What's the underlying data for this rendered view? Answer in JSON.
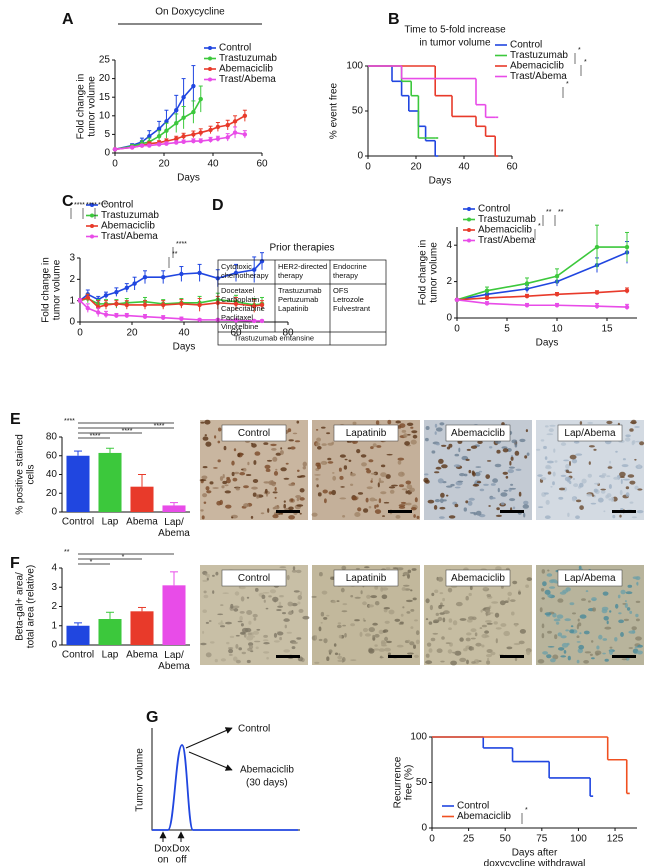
{
  "chart_data": [
    {
      "type": "line",
      "panel": "A",
      "title": "On Doxycycline",
      "xlabel": "Days",
      "ylabel": [
        "Fold change in",
        "tumor volume"
      ],
      "xlim": [
        0,
        60
      ],
      "xticks": [
        0,
        20,
        40,
        60
      ],
      "ylim": [
        0,
        25
      ],
      "yticks": [
        0,
        5,
        10,
        15,
        20,
        25
      ],
      "legend": "top-right",
      "series": [
        {
          "name": "Control",
          "color": "#2046e0",
          "x": [
            0,
            7,
            11,
            14,
            18,
            21,
            25,
            28,
            32
          ],
          "values": [
            1,
            2,
            3,
            4.5,
            6.5,
            8.5,
            11.5,
            15,
            18
          ],
          "errors": [
            0.2,
            0.5,
            1,
            1.5,
            2,
            3,
            4,
            5,
            5.5
          ]
        },
        {
          "name": "Trastuzumab",
          "color": "#3cc83c",
          "x": [
            0,
            7,
            11,
            14,
            18,
            21,
            25,
            28,
            32,
            35
          ],
          "values": [
            1,
            1.8,
            2.5,
            3,
            4.5,
            6,
            8,
            9.5,
            11,
            14.5
          ],
          "errors": [
            0.2,
            0.5,
            0.8,
            1,
            1.5,
            2,
            2.5,
            3,
            3,
            3.5
          ]
        },
        {
          "name": "Abemaciclib",
          "color": "#e83a2a",
          "x": [
            0,
            7,
            11,
            14,
            18,
            21,
            25,
            28,
            32,
            35,
            39,
            42,
            46,
            49,
            53
          ],
          "values": [
            1,
            1.5,
            2,
            2.5,
            2.8,
            3.2,
            3.8,
            4.5,
            5,
            5.5,
            6.2,
            7,
            7.5,
            8.5,
            10
          ],
          "errors": [
            0.2,
            0.3,
            0.4,
            0.5,
            0.5,
            0.6,
            0.7,
            0.8,
            0.9,
            1,
            1,
            1.2,
            1.3,
            1.5,
            1.5
          ]
        },
        {
          "name": "Trast/Abema",
          "color": "#e84ce8",
          "x": [
            0,
            7,
            11,
            14,
            18,
            21,
            25,
            28,
            32,
            35,
            39,
            42,
            46,
            49,
            53
          ],
          "values": [
            1,
            1.5,
            2,
            2,
            2.3,
            2.5,
            2.8,
            3,
            3.2,
            3.2,
            3.5,
            3.8,
            4.2,
            5.5,
            5
          ],
          "errors": [
            0.2,
            0.3,
            0.3,
            0.4,
            0.4,
            0.5,
            0.5,
            0.5,
            0.6,
            0.6,
            0.7,
            0.7,
            1,
            1.5,
            1
          ]
        }
      ]
    },
    {
      "type": "step",
      "panel": "B",
      "title": [
        "Time to 5-fold increase",
        "in tumor volume"
      ],
      "xlabel": "Days",
      "ylabel": "% event free",
      "xlim": [
        0,
        60
      ],
      "xticks": [
        0,
        20,
        40,
        60
      ],
      "ylim": [
        0,
        100
      ],
      "yticks": [
        0,
        50,
        100
      ],
      "legend": "right",
      "annotations": [
        "*",
        "*",
        "*"
      ],
      "series": [
        {
          "name": "Control",
          "color": "#2046e0",
          "x": [
            0,
            10,
            14,
            17,
            21,
            24,
            28
          ],
          "values": [
            100,
            83,
            67,
            50,
            33,
            17,
            0
          ]
        },
        {
          "name": "Trastuzumab",
          "color": "#3cc83c",
          "x": [
            0,
            14,
            18,
            21,
            28
          ],
          "values": [
            100,
            83,
            67,
            20,
            20
          ]
        },
        {
          "name": "Abemaciclib",
          "color": "#e83a2a",
          "x": [
            0,
            28,
            35,
            45,
            49,
            53
          ],
          "values": [
            100,
            67,
            44,
            33,
            22,
            0
          ]
        },
        {
          "name": "Trast/Abema",
          "color": "#e84ce8",
          "x": [
            0,
            14,
            45,
            49,
            53
          ],
          "values": [
            100,
            86,
            57,
            43,
            43
          ]
        }
      ]
    },
    {
      "type": "line",
      "panel": "C",
      "xlabel": "Days",
      "ylabel": [
        "Fold change in",
        "tumor volume"
      ],
      "xlim": [
        0,
        80
      ],
      "xticks": [
        0,
        20,
        40,
        60,
        80
      ],
      "ylim": [
        0,
        3
      ],
      "yticks": [
        0,
        1,
        2,
        3
      ],
      "legend": "top-left",
      "annotations": [
        "****",
        "****",
        "****",
        "****",
        "**"
      ],
      "series": [
        {
          "name": "Control",
          "color": "#2046e0",
          "x": [
            0,
            3,
            7,
            10,
            14,
            18,
            21,
            25,
            32,
            39,
            46,
            53,
            60,
            67,
            70
          ],
          "values": [
            1,
            1.3,
            1.05,
            1.25,
            1.4,
            1.6,
            1.8,
            2.1,
            2.1,
            2.25,
            2.3,
            2.05,
            2.3,
            2.45,
            2.85
          ],
          "errors": [
            0.1,
            0.2,
            0.15,
            0.15,
            0.2,
            0.2,
            0.3,
            0.3,
            0.3,
            0.35,
            0.4,
            0.4,
            0.4,
            0.6,
            0.4
          ]
        },
        {
          "name": "Trastuzumab",
          "color": "#3cc83c",
          "x": [
            0,
            3,
            7,
            10,
            14,
            18,
            25,
            32,
            39,
            46,
            53,
            60,
            67,
            70
          ],
          "values": [
            1,
            1.1,
            0.85,
            0.85,
            0.85,
            0.9,
            0.95,
            0.85,
            0.9,
            0.9,
            1.05,
            0.95,
            0.8,
            0.85
          ],
          "errors": [
            0.1,
            0.2,
            0.2,
            0.2,
            0.2,
            0.2,
            0.2,
            0.2,
            0.2,
            0.3,
            0.3,
            0.3,
            0.3,
            0.3
          ]
        },
        {
          "name": "Abemaciclib",
          "color": "#e83a2a",
          "x": [
            0,
            3,
            7,
            10,
            14,
            18,
            25,
            32,
            39,
            46,
            53,
            60,
            67,
            70
          ],
          "values": [
            1,
            1.15,
            0.7,
            0.8,
            0.85,
            0.8,
            0.8,
            0.8,
            0.85,
            0.8,
            0.9,
            0.85,
            0.75,
            0.8
          ],
          "errors": [
            0.1,
            0.15,
            0.3,
            0.2,
            0.15,
            0.2,
            0.2,
            0.2,
            0.2,
            0.3,
            0.3,
            0.3,
            0.3,
            0.2
          ]
        },
        {
          "name": "Trast/Abema",
          "color": "#e84ce8",
          "x": [
            0,
            3,
            7,
            10,
            14,
            18,
            25,
            32,
            39,
            46,
            53,
            60,
            67,
            70
          ],
          "values": [
            1,
            0.65,
            0.45,
            0.35,
            0.3,
            0.3,
            0.25,
            0.2,
            0.15,
            0.1,
            0.1,
            0.08,
            0.05,
            0.05
          ],
          "errors": [
            0.1,
            0.2,
            0.2,
            0.15,
            0.1,
            0.1,
            0.1,
            0.1,
            0.08,
            0.05,
            0.05,
            0.05,
            0.05,
            0.05
          ]
        }
      ]
    },
    {
      "type": "line",
      "xlabel": "Days",
      "ylabel": [
        "Fold change in",
        "tumor volume"
      ],
      "xlim": [
        0,
        18
      ],
      "xticks": [
        0,
        5,
        10,
        15
      ],
      "ylim": [
        0,
        5
      ],
      "yticks": [
        0,
        2,
        4
      ],
      "legend": "top-left",
      "annotations": [
        "**",
        "**",
        "*"
      ],
      "series": [
        {
          "name": "Control",
          "color": "#2046e0",
          "x": [
            0,
            3,
            7,
            10,
            14,
            17
          ],
          "values": [
            1,
            1.3,
            1.6,
            2,
            2.9,
            3.6
          ],
          "errors": [
            0.05,
            0.15,
            0.2,
            0.25,
            0.4,
            0.6
          ]
        },
        {
          "name": "Trastuzumab",
          "color": "#3cc83c",
          "x": [
            0,
            3,
            7,
            10,
            14,
            17
          ],
          "values": [
            1,
            1.5,
            1.9,
            2.3,
            3.9,
            3.9
          ],
          "errors": [
            0.05,
            0.2,
            0.3,
            0.4,
            1.2,
            0.8
          ]
        },
        {
          "name": "Abemaciclib",
          "color": "#e83a2a",
          "x": [
            0,
            3,
            7,
            10,
            14,
            17
          ],
          "values": [
            1,
            1.1,
            1.2,
            1.3,
            1.4,
            1.5
          ],
          "errors": [
            0.05,
            0.1,
            0.1,
            0.1,
            0.1,
            0.15
          ]
        },
        {
          "name": "Trast/Abema",
          "color": "#e84ce8",
          "x": [
            0,
            3,
            7,
            10,
            14,
            17
          ],
          "values": [
            1,
            0.8,
            0.7,
            0.7,
            0.65,
            0.6
          ],
          "errors": [
            0.05,
            0.1,
            0.1,
            0.1,
            0.15,
            0.15
          ]
        }
      ]
    },
    {
      "type": "bar",
      "panel": "E",
      "ylabel": [
        "% positive stained",
        "cells"
      ],
      "categories": [
        "Control",
        "Lap",
        "Abema",
        "Lap/Abema"
      ],
      "values": [
        60,
        63,
        27,
        7
      ],
      "errors": [
        5,
        5,
        13,
        3
      ],
      "colors": [
        "#2046e0",
        "#3cc83c",
        "#e83a2a",
        "#e84ce8"
      ],
      "ylim": [
        0,
        80
      ],
      "yticks": [
        0,
        20,
        40,
        60,
        80
      ],
      "annotations": [
        "****",
        "****",
        "****",
        "****"
      ]
    },
    {
      "type": "bar",
      "panel": "F",
      "ylabel": [
        "Beta-gal+ area/",
        "total area (relative)"
      ],
      "categories": [
        "Control",
        "Lap",
        "Abema",
        "Lap/Abema"
      ],
      "values": [
        1.0,
        1.35,
        1.75,
        3.1
      ],
      "errors": [
        0.15,
        0.35,
        0.2,
        0.7
      ],
      "colors": [
        "#2046e0",
        "#3cc83c",
        "#e83a2a",
        "#e84ce8"
      ],
      "ylim": [
        0,
        4
      ],
      "yticks": [
        0,
        1,
        2,
        3,
        4
      ],
      "annotations": [
        "**",
        "*",
        "*"
      ]
    },
    {
      "type": "step",
      "xlabel": [
        "Days after",
        "doxycycline withdrawal"
      ],
      "ylabel": [
        "Recurrence",
        "free (%)"
      ],
      "xlim": [
        0,
        140
      ],
      "xticks": [
        0,
        25,
        50,
        75,
        100,
        125
      ],
      "ylim": [
        0,
        100
      ],
      "yticks": [
        0,
        50,
        100
      ],
      "legend": "bottom-left",
      "annotations": [
        "*"
      ],
      "series": [
        {
          "name": "Control",
          "color": "#2046e0",
          "x": [
            0,
            35,
            55,
            80,
            108
          ],
          "values": [
            100,
            88,
            73,
            55,
            35
          ]
        },
        {
          "name": "Abemaciclib",
          "color": "#f05020",
          "x": [
            0,
            120,
            133
          ],
          "values": [
            100,
            75,
            38
          ]
        }
      ]
    }
  ],
  "prior_therapies": {
    "panel": "D",
    "title": "Prior therapies",
    "columns": [
      {
        "header": "Cytotoxic chemotherapy",
        "items": [
          "Docetaxel",
          "Carboplatin",
          "Capecitabine",
          "Paclitaxel",
          "Vinorelbine"
        ]
      },
      {
        "header": "HER2-directed therapy",
        "items": [
          "Trastuzumab",
          "Pertuzumab",
          "Lapatinib"
        ]
      },
      {
        "header": "Endocrine therapy",
        "items": [
          "OFS",
          "Letrozole",
          "Fulvestrant"
        ]
      }
    ],
    "footer": "Trastuzumab emtansine"
  },
  "histology": [
    {
      "labels": [
        "Control",
        "Lapatinib",
        "Abemaciclib",
        "Lap/Abema"
      ]
    },
    {
      "labels": [
        "Control",
        "Lapatinib",
        "Abemaciclib",
        "Lap/Abema"
      ]
    }
  ],
  "schematic": {
    "panel": "G",
    "ylabel": "Tumor volume",
    "outcomes": [
      [
        "Control"
      ],
      [
        "Abemaciclib",
        "(30 days)"
      ]
    ],
    "events": [
      [
        "Dox",
        "on"
      ],
      [
        "Dox",
        "off"
      ]
    ]
  }
}
